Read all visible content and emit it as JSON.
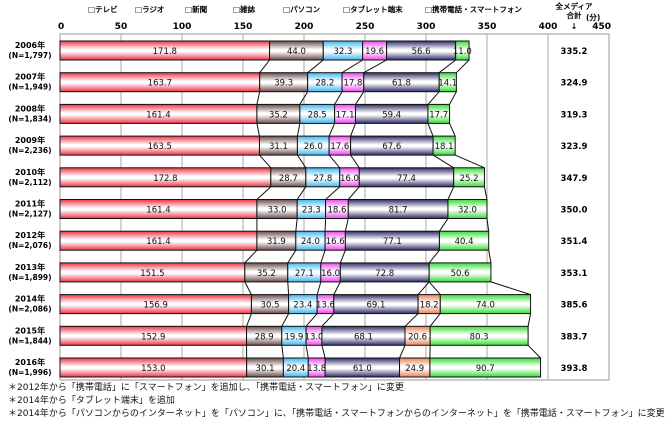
{
  "chart_data": {
    "type": "bar",
    "orientation": "horizontal",
    "stacked": true,
    "title": "",
    "xlabel": "",
    "ylabel": "",
    "xlim": [
      0,
      450
    ],
    "xticks": [
      0,
      50,
      100,
      150,
      200,
      250,
      300,
      350,
      400,
      450
    ],
    "grid": true,
    "legend_position": "top",
    "categories": [
      {
        "year": "2006年",
        "n": "(N=1,797)"
      },
      {
        "year": "2007年",
        "n": "(N=1,949)"
      },
      {
        "year": "2008年",
        "n": "(N=1,834)"
      },
      {
        "year": "2009年",
        "n": "(N=2,236)"
      },
      {
        "year": "2010年",
        "n": "(N=2,112)"
      },
      {
        "year": "2011年",
        "n": "(N=2,127)"
      },
      {
        "year": "2012年",
        "n": "(N=2,076)"
      },
      {
        "year": "2013年",
        "n": "(N=1,899)"
      },
      {
        "year": "2014年",
        "n": "(N=2,086)"
      },
      {
        "year": "2015年",
        "n": "(N=1,844)"
      },
      {
        "year": "2016年",
        "n": "(N=1,996)"
      }
    ],
    "series": [
      {
        "name": "テレビ",
        "color": "#ee3344",
        "values": [
          171.8,
          163.7,
          161.4,
          163.5,
          172.8,
          161.4,
          161.4,
          151.5,
          156.9,
          152.9,
          153.0
        ]
      },
      {
        "name": "ラジオ",
        "color": "#6b4a4a",
        "values": [
          44.0,
          39.3,
          35.2,
          31.1,
          28.7,
          33.0,
          31.9,
          35.2,
          30.5,
          28.9,
          30.1
        ]
      },
      {
        "name": "新聞",
        "color": "#3fb6ee",
        "values": [
          32.3,
          28.2,
          28.5,
          26.0,
          27.8,
          23.3,
          24.0,
          27.1,
          23.4,
          19.9,
          20.4
        ]
      },
      {
        "name": "雑誌",
        "color": "#ee44ee",
        "values": [
          19.6,
          17.8,
          17.1,
          17.6,
          16.0,
          18.6,
          16.6,
          16.0,
          13.6,
          13.0,
          13.8
        ]
      },
      {
        "name": "パソコン",
        "color": "#2c2c66",
        "values": [
          56.6,
          61.8,
          59.4,
          67.6,
          77.4,
          81.7,
          77.1,
          72.8,
          69.1,
          68.1,
          61.0
        ]
      },
      {
        "name": "タブレット端末",
        "color": "#e8845a",
        "values": [
          null,
          null,
          null,
          null,
          null,
          null,
          null,
          null,
          18.2,
          20.6,
          24.9
        ]
      },
      {
        "name": "携帯電話・スマートフォン",
        "color": "#33dd33",
        "values": [
          11.0,
          14.1,
          17.7,
          18.1,
          25.2,
          32.0,
          40.4,
          50.6,
          74.0,
          80.3,
          90.7
        ]
      }
    ],
    "totals": {
      "label_line1": "全メディア",
      "label_line2": "合計",
      "unit": "(分)",
      "arrow": "↓",
      "values": [
        "335.2",
        "324.9",
        "319.3",
        "323.9",
        "347.9",
        "350.0",
        "351.4",
        "353.1",
        "385.6",
        "383.7",
        "393.8"
      ]
    },
    "legend_marker": "□"
  },
  "notes": [
    "＊2012年から「携帯電話」に「スマートフォン」を追加し、「携帯電話・スマートフォン」に変更",
    "＊2014年から「タブレット端末」を追加",
    "＊2014年から「パソコンからのインターネット」を「パソコン」に、「携帯電話・スマートフォンからのインターネット」を「携帯電話・スマートフォン」に変更"
  ]
}
